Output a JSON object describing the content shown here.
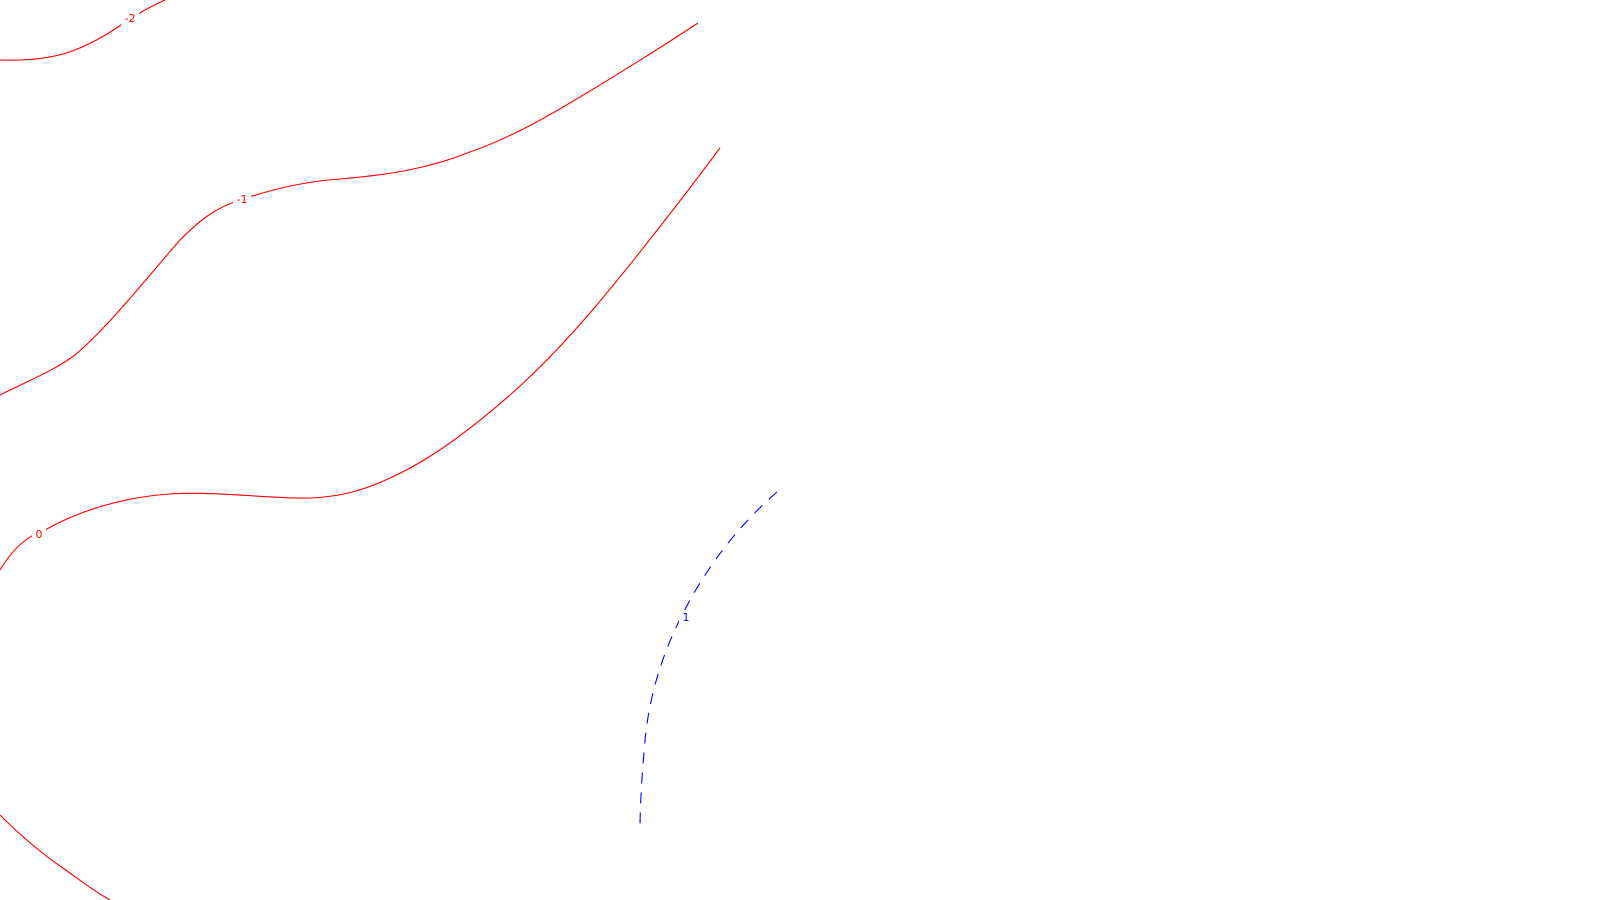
{
  "map": {
    "background": "#ffffff",
    "contours": [
      {
        "level": "-2",
        "color": "#ff0000",
        "dash": "solid"
      },
      {
        "level": "-1",
        "color": "#ff0000",
        "dash": "solid"
      },
      {
        "level": "0",
        "color": "#ff0000",
        "dash": "solid"
      },
      {
        "level": "1",
        "color": "#0000ff",
        "dash": "dashed"
      }
    ]
  }
}
